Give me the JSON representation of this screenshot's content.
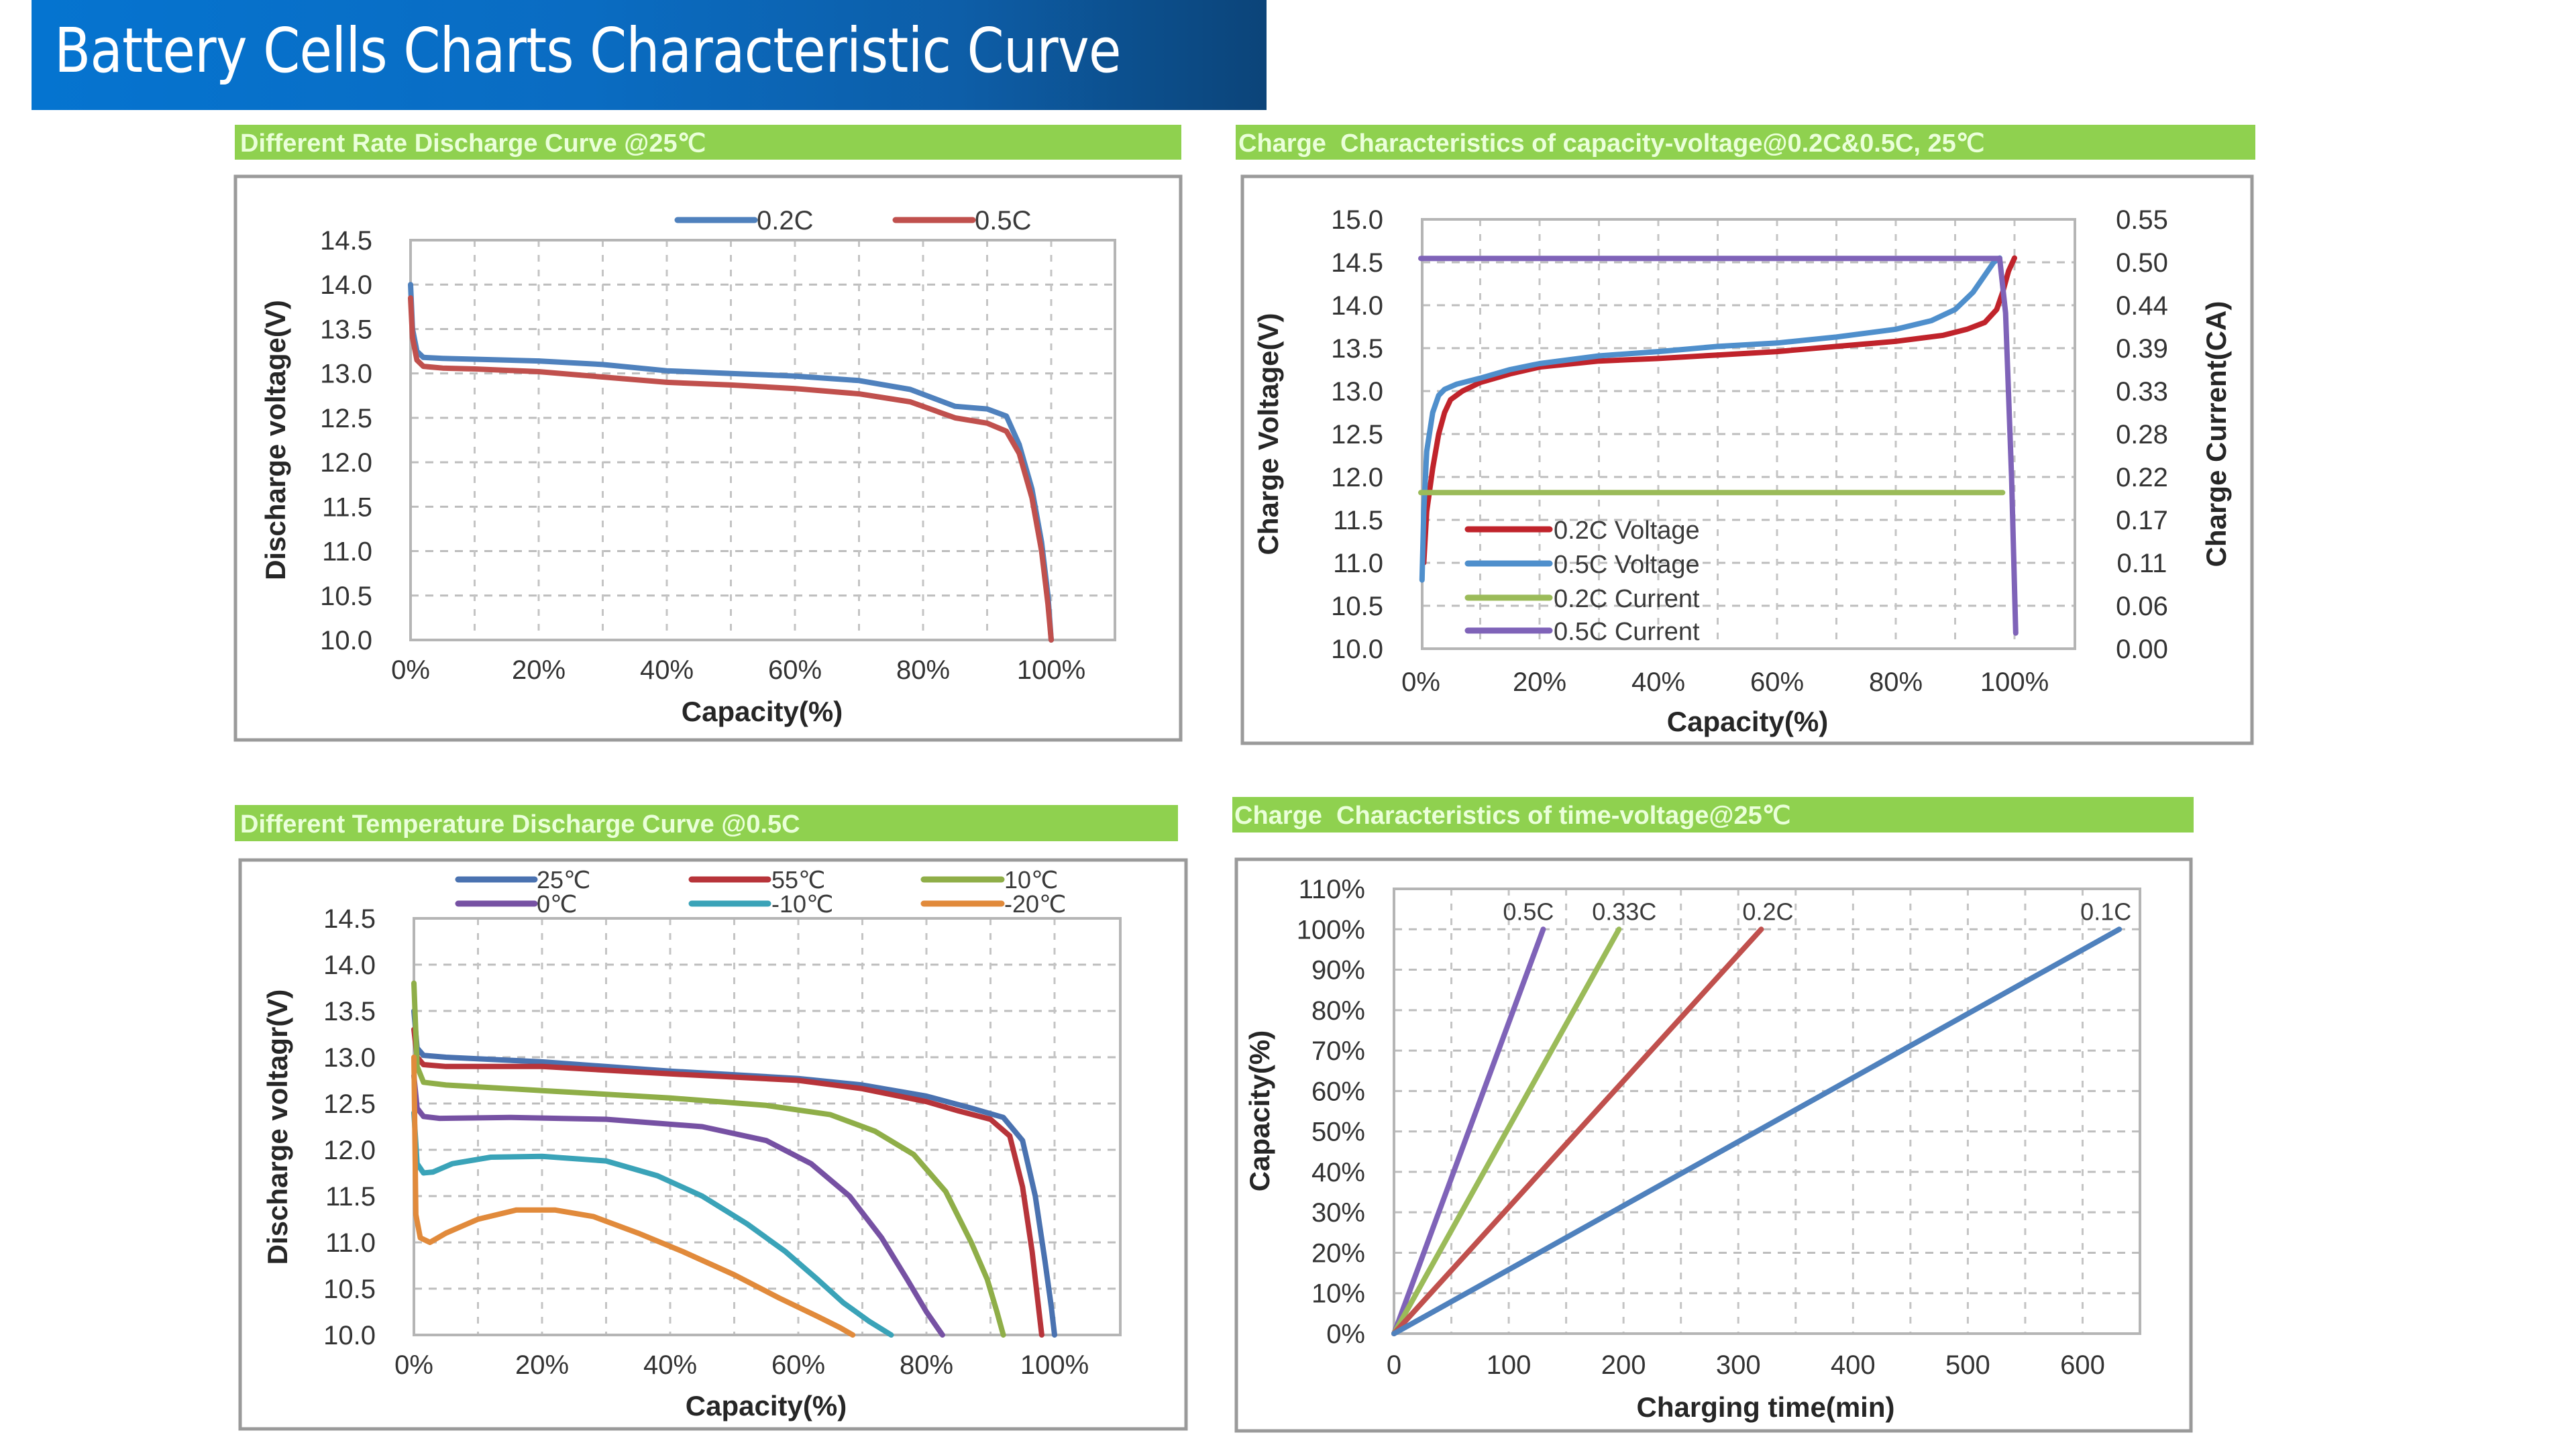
{
  "header": {
    "title": "Battery Cells Charts Characteristic Curve"
  },
  "colors": {
    "title_bar_start": "#0574d0",
    "title_bar_end": "#0c4479",
    "label_green": "#8fd14f",
    "grid": "#bdbdbd",
    "frame": "#9a9a9a"
  },
  "chart_data": [
    {
      "id": "rate-discharge",
      "type": "line",
      "title": "Different Rate Discharge Curve @25℃",
      "xlabel": "Capacity(%)",
      "ylabel": "Discharge voltage(V)",
      "xlim": [
        0,
        110
      ],
      "ylim": [
        10.0,
        14.5
      ],
      "grid": true,
      "legend": "top-right",
      "xticks": [
        0,
        20,
        40,
        60,
        80,
        100
      ],
      "xtick_labels": [
        "0%",
        "20%",
        "40%",
        "60%",
        "80%",
        "100%"
      ],
      "yticks": [
        14.5,
        14.0,
        13.5,
        13.0,
        12.5,
        12.0,
        11.5,
        11.0,
        10.5,
        10.0
      ],
      "ytick_labels": [
        "14.5",
        "14.0",
        "13.5",
        "13.0",
        "12.5",
        "12.0",
        "11.5",
        "11.0",
        "10.5",
        "10.0"
      ],
      "series": [
        {
          "name": "0.2C",
          "color": "#4f81bd",
          "x": [
            0,
            0.3,
            1,
            2,
            5,
            10,
            20,
            30,
            40,
            50,
            60,
            70,
            78,
            85,
            90,
            93,
            95,
            97,
            98.5,
            99.5,
            100
          ],
          "y": [
            14.0,
            13.5,
            13.25,
            13.18,
            13.17,
            13.16,
            13.14,
            13.1,
            13.03,
            13.0,
            12.97,
            12.92,
            12.82,
            12.63,
            12.6,
            12.52,
            12.2,
            11.7,
            11.1,
            10.5,
            10.0
          ]
        },
        {
          "name": "0.5C",
          "color": "#c0504d",
          "x": [
            0,
            0.3,
            1,
            2,
            5,
            10,
            20,
            30,
            40,
            50,
            60,
            70,
            78,
            85,
            90,
            93,
            95,
            97,
            98.5,
            99.5,
            100
          ],
          "y": [
            13.85,
            13.4,
            13.15,
            13.08,
            13.06,
            13.05,
            13.02,
            12.96,
            12.9,
            12.87,
            12.83,
            12.77,
            12.68,
            12.5,
            12.44,
            12.35,
            12.1,
            11.6,
            11.0,
            10.4,
            10.0
          ]
        }
      ]
    },
    {
      "id": "charge-capacity-voltage",
      "type": "line",
      "title": "Charge  Characteristics of capacity-voltage@0.2C&0.5C, 25℃",
      "xlabel": "Capacity(%)",
      "ylabel": "Charge Voltage(V)",
      "y2label": "Charge Current(CA)",
      "xlim": [
        0,
        110
      ],
      "ylim": [
        10.0,
        15.0
      ],
      "y2lim": [
        0.0,
        0.55
      ],
      "grid": true,
      "legend": "bottom-left",
      "xticks": [
        0,
        20,
        40,
        60,
        80,
        100
      ],
      "xtick_labels": [
        "0%",
        "20%",
        "40%",
        "60%",
        "80%",
        "100%"
      ],
      "yticks": [
        15.0,
        14.5,
        14.0,
        13.5,
        13.0,
        12.5,
        12.0,
        11.5,
        11.0,
        10.5,
        10.0
      ],
      "ytick_labels": [
        "15.0",
        "14.5",
        "14.0",
        "13.5",
        "13.0",
        "12.5",
        "12.0",
        "11.5",
        "11.0",
        "10.5",
        "10.0"
      ],
      "y2tick_labels": [
        "0.55",
        "0.50",
        "0.44",
        "0.39",
        "0.33",
        "0.28",
        "0.22",
        "0.17",
        "0.11",
        "0.06",
        "0.00"
      ],
      "series": [
        {
          "name": "0.2C Voltage",
          "color": "#c0232b",
          "axis": "left",
          "x": [
            0.5,
            1,
            2,
            3,
            4,
            5,
            7,
            10,
            15,
            20,
            30,
            40,
            50,
            60,
            70,
            80,
            88,
            92,
            95,
            97,
            98,
            99,
            100
          ],
          "y": [
            11.0,
            11.6,
            12.1,
            12.5,
            12.75,
            12.9,
            13.0,
            13.1,
            13.2,
            13.28,
            13.35,
            13.38,
            13.42,
            13.46,
            13.52,
            13.58,
            13.65,
            13.72,
            13.8,
            13.95,
            14.15,
            14.4,
            14.55
          ]
        },
        {
          "name": "0.5C Voltage",
          "color": "#4f8fcc",
          "axis": "left",
          "x": [
            0.2,
            0.5,
            1,
            2,
            3,
            4,
            6,
            10,
            15,
            20,
            30,
            40,
            50,
            60,
            70,
            80,
            86,
            90,
            93,
            95,
            96.5,
            97.5
          ],
          "y": [
            10.8,
            11.6,
            12.3,
            12.75,
            12.95,
            13.02,
            13.08,
            13.15,
            13.25,
            13.32,
            13.41,
            13.46,
            13.52,
            13.56,
            13.63,
            13.72,
            13.82,
            13.95,
            14.15,
            14.35,
            14.5,
            14.55
          ]
        },
        {
          "name": "0.2C Current",
          "color": "#9bbb59",
          "axis": "right",
          "x": [
            0,
            98
          ],
          "y": [
            0.2,
            0.2
          ]
        },
        {
          "name": "0.5C Current",
          "color": "#7f63b8",
          "axis": "right",
          "x": [
            0,
            97.5,
            98.5,
            99.5,
            100.2
          ],
          "y": [
            0.5,
            0.5,
            0.43,
            0.22,
            0.02
          ]
        }
      ]
    },
    {
      "id": "temperature-discharge",
      "type": "line",
      "title": "Different Temperature Discharge Curve @0.5C",
      "xlabel": "Capacity(%)",
      "ylabel": "Discharge voltagr(V)",
      "xlim": [
        0,
        110
      ],
      "ylim": [
        10.0,
        14.5
      ],
      "grid": true,
      "legend": "top",
      "xticks": [
        0,
        20,
        40,
        60,
        80,
        100
      ],
      "xtick_labels": [
        "0%",
        "20%",
        "40%",
        "60%",
        "80%",
        "100%"
      ],
      "yticks": [
        14.5,
        14.0,
        13.5,
        13.0,
        12.5,
        12.0,
        11.5,
        11.0,
        10.5,
        10.0
      ],
      "ytick_labels": [
        "14.5",
        "14.0",
        "13.5",
        "13.0",
        "12.5",
        "12.0",
        "11.5",
        "11.0",
        "10.5",
        "10.0"
      ],
      "series": [
        {
          "name": "25℃",
          "color": "#4a72b0",
          "x": [
            0,
            0.5,
            1.5,
            5,
            20,
            40,
            60,
            70,
            80,
            87,
            92,
            95,
            97,
            98.5,
            99.5,
            100
          ],
          "y": [
            13.5,
            13.1,
            13.02,
            13.0,
            12.95,
            12.85,
            12.77,
            12.7,
            12.58,
            12.45,
            12.35,
            12.1,
            11.5,
            10.8,
            10.3,
            10.0
          ]
        },
        {
          "name": "55℃",
          "color": "#b7343a",
          "x": [
            0,
            0.5,
            1.5,
            5,
            20,
            40,
            60,
            70,
            80,
            85,
            90,
            93,
            95,
            96.5,
            97.5,
            98
          ],
          "y": [
            13.3,
            13.0,
            12.92,
            12.9,
            12.9,
            12.82,
            12.75,
            12.66,
            12.52,
            12.42,
            12.33,
            12.15,
            11.6,
            10.9,
            10.3,
            10.0
          ]
        },
        {
          "name": "10℃",
          "color": "#8fae48",
          "x": [
            0,
            0.5,
            1.5,
            5,
            20,
            40,
            55,
            65,
            72,
            78,
            83,
            87,
            89.5,
            91,
            92
          ],
          "y": [
            13.8,
            12.9,
            12.73,
            12.7,
            12.64,
            12.56,
            12.48,
            12.38,
            12.2,
            11.95,
            11.55,
            11.0,
            10.6,
            10.25,
            10.0
          ]
        },
        {
          "name": "0℃",
          "color": "#7651a3",
          "x": [
            0,
            0.5,
            1.5,
            4,
            15,
            30,
            45,
            55,
            62,
            68,
            73,
            77,
            80,
            82.5
          ],
          "y": [
            12.8,
            12.45,
            12.36,
            12.34,
            12.35,
            12.33,
            12.25,
            12.1,
            11.85,
            11.5,
            11.05,
            10.6,
            10.25,
            10.0
          ]
        },
        {
          "name": "-10℃",
          "color": "#3aa3b8",
          "x": [
            0,
            0.5,
            1.5,
            3,
            6,
            12,
            20,
            30,
            38,
            45,
            52,
            58,
            63,
            67,
            71,
            74.5
          ],
          "y": [
            12.4,
            11.85,
            11.75,
            11.76,
            11.85,
            11.92,
            11.93,
            11.88,
            11.72,
            11.5,
            11.2,
            10.9,
            10.6,
            10.35,
            10.15,
            10.0
          ]
        },
        {
          "name": "-20℃",
          "color": "#e18a3b",
          "x": [
            0,
            0.3,
            1,
            2.5,
            5,
            10,
            16,
            22,
            28,
            35,
            42,
            50,
            57,
            63,
            66.5,
            68.5
          ],
          "y": [
            13.0,
            11.3,
            11.05,
            11.0,
            11.1,
            11.25,
            11.35,
            11.35,
            11.28,
            11.1,
            10.9,
            10.65,
            10.4,
            10.2,
            10.08,
            10.0
          ]
        }
      ]
    },
    {
      "id": "charge-time-capacity",
      "type": "line",
      "title": "Charge  Characteristics of time-voltage@25℃",
      "xlabel": "Charging time(min)",
      "ylabel": "Capacity(%)",
      "xlim": [
        0,
        650
      ],
      "ylim": [
        0,
        110
      ],
      "grid": true,
      "legend": "line-end-labels",
      "xticks": [
        0,
        100,
        200,
        300,
        400,
        500,
        600
      ],
      "xtick_labels": [
        "0",
        "100",
        "200",
        "300",
        "400",
        "500",
        "600"
      ],
      "yticks": [
        110,
        100,
        90,
        80,
        70,
        60,
        50,
        40,
        30,
        20,
        10,
        0
      ],
      "ytick_labels": [
        "110%",
        "100%",
        "90%",
        "80%",
        "70%",
        "60%",
        "50%",
        "40%",
        "30%",
        "20%",
        "10%",
        "0%"
      ],
      "series": [
        {
          "name": "0.5C",
          "color": "#7f63b8",
          "x": [
            0,
            130
          ],
          "y": [
            0,
            100
          ]
        },
        {
          "name": "0.33C",
          "color": "#9bbb59",
          "x": [
            0,
            196
          ],
          "y": [
            0,
            100
          ]
        },
        {
          "name": "0.2C",
          "color": "#c0504d",
          "x": [
            0,
            320
          ],
          "y": [
            0,
            100
          ]
        },
        {
          "name": "0.1C",
          "color": "#4f81bd",
          "x": [
            0,
            632
          ],
          "y": [
            0,
            100
          ]
        }
      ]
    }
  ]
}
